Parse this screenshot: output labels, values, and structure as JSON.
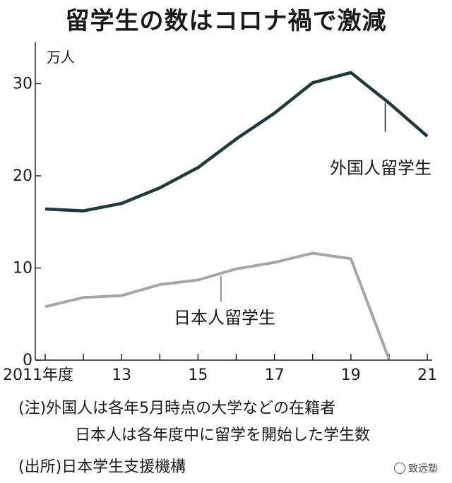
{
  "title": "留学生の数はコロナ禍で激減",
  "chart_data": {
    "type": "line",
    "y_unit_label": "万人",
    "ylim": [
      0,
      35
    ],
    "y_ticks": [
      0,
      10,
      20,
      30
    ],
    "y_tick_labels": [
      "0",
      "10",
      "20",
      "30"
    ],
    "xlim": [
      2011,
      2021
    ],
    "x_tick_positions": [
      2011,
      2013,
      2015,
      2017,
      2019,
      2021
    ],
    "x_tick_labels": [
      "2011年度",
      "13",
      "15",
      "17",
      "19",
      "21"
    ],
    "grid": false,
    "series": [
      {
        "name": "外国人留学生",
        "color": "#1e3a3a",
        "x": [
          2011,
          2012,
          2013,
          2014,
          2015,
          2016,
          2017,
          2018,
          2019,
          2020,
          2021
        ],
        "values": [
          16.4,
          16.2,
          17.0,
          18.7,
          20.9,
          24.0,
          26.8,
          30.1,
          31.2,
          27.9,
          24.3
        ]
      },
      {
        "name": "日本人留学生",
        "color": "#a6a6a6",
        "x": [
          2011,
          2012,
          2013,
          2014,
          2015,
          2016,
          2017,
          2018,
          2019,
          2020
        ],
        "values": [
          5.8,
          6.8,
          7.0,
          8.2,
          8.7,
          9.9,
          10.6,
          11.6,
          11.0,
          0.1
        ]
      }
    ],
    "annotations": [
      {
        "series": 0,
        "text": "外国人留学生"
      },
      {
        "series": 1,
        "text": "日本人留学生"
      }
    ]
  },
  "notes": {
    "line1": "(注)外国人は各年5月時点の大学などの在籍者",
    "line2": "日本人は各年度中に留学を開始した学生数",
    "source": "(出所)日本学生支援機構"
  },
  "watermark": "致远塾"
}
